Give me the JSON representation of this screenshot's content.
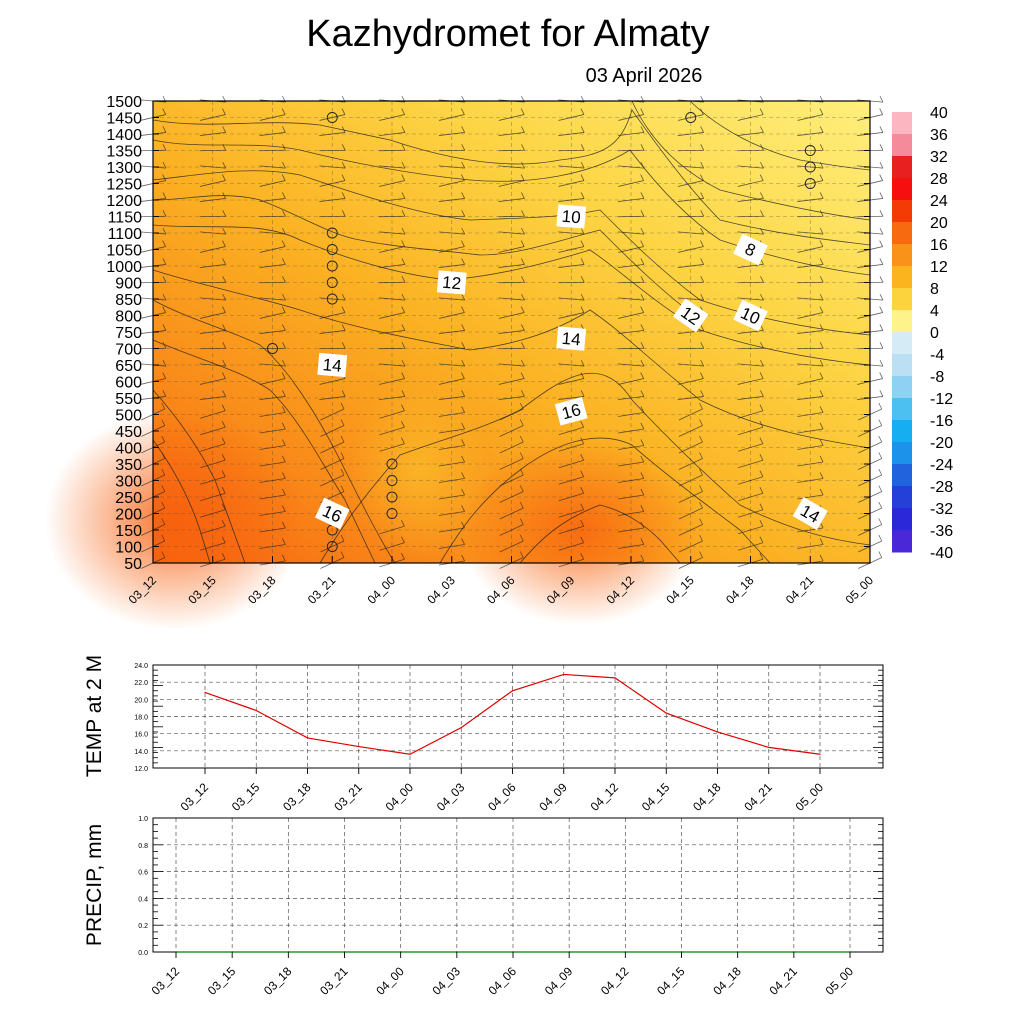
{
  "title": "Kazhydromet  for Almaty",
  "date": "03 April 2026",
  "time_labels": [
    "03_12",
    "03_15",
    "03_18",
    "03_21",
    "04_00",
    "04_03",
    "04_06",
    "04_09",
    "04_12",
    "04_15",
    "04_18",
    "04_21",
    "05_00"
  ],
  "chart_data": [
    {
      "type": "heatmap",
      "title": "Kazhydromet  for Almaty",
      "subtitle": "03 April 2026",
      "x": [
        "03_12",
        "03_15",
        "03_18",
        "03_21",
        "04_00",
        "04_03",
        "04_06",
        "04_09",
        "04_12",
        "04_15",
        "04_18",
        "04_21",
        "05_00"
      ],
      "y_ticks": [
        50,
        100,
        150,
        200,
        250,
        300,
        350,
        400,
        450,
        500,
        550,
        600,
        650,
        700,
        750,
        800,
        850,
        900,
        1000,
        1050,
        1100,
        1150,
        1200,
        1250,
        1300,
        1350,
        1400,
        1450,
        1500
      ],
      "ylim": [
        50,
        1500
      ],
      "grid": true,
      "colorbar_ticks": [
        40,
        36,
        32,
        28,
        24,
        20,
        16,
        12,
        8,
        4,
        0,
        -4,
        -8,
        -12,
        -16,
        -20,
        -24,
        -28,
        -32,
        -36,
        -40
      ],
      "colorbar_range": [
        -40,
        40
      ],
      "contour_labels": [
        {
          "text": "10",
          "x": "04_09",
          "y": 1150
        },
        {
          "text": "8",
          "x": "04_18",
          "y": 1050
        },
        {
          "text": "12",
          "x": "04_03",
          "y": 900
        },
        {
          "text": "12",
          "x": "04_15",
          "y": 800
        },
        {
          "text": "10",
          "x": "04_18",
          "y": 800
        },
        {
          "text": "14",
          "x": "04_09",
          "y": 730
        },
        {
          "text": "14",
          "x": "03_21",
          "y": 650
        },
        {
          "text": "16",
          "x": "04_09",
          "y": 510
        },
        {
          "text": "16",
          "x": "03_21",
          "y": 200
        },
        {
          "text": "14",
          "x": "04_21",
          "y": 200
        }
      ],
      "colors": {
        "hot": "#f96a12",
        "warm": "#fbae1e",
        "mild": "#fde35a",
        "pale": "#fef07e"
      }
    },
    {
      "type": "line",
      "ylabel": "TEMP at 2 M",
      "x": [
        "03_12",
        "03_15",
        "03_18",
        "03_21",
        "04_00",
        "04_03",
        "04_06",
        "04_09",
        "04_12",
        "04_15",
        "04_18",
        "04_21",
        "05_00"
      ],
      "values": [
        20.8,
        18.7,
        15.5,
        14.5,
        13.6,
        16.7,
        21.0,
        22.9,
        22.5,
        18.4,
        16.2,
        14.4,
        13.6
      ],
      "y_ticks": [
        "12.0",
        "14.0",
        "16.0",
        "18.0",
        "20.0",
        "22.0",
        "24.0"
      ],
      "ylim": [
        12,
        24
      ],
      "grid": true,
      "line_color": "#e00000"
    },
    {
      "type": "line",
      "ylabel": "PRECIP, mm",
      "x": [
        "03_12",
        "03_15",
        "03_18",
        "03_21",
        "04_00",
        "04_03",
        "04_06",
        "04_09",
        "04_12",
        "04_15",
        "04_18",
        "04_21",
        "05_00"
      ],
      "values": [
        0,
        0,
        0,
        0,
        0,
        0,
        0,
        0,
        0,
        0,
        0,
        0,
        0
      ],
      "y_ticks": [
        "0.0",
        "0.2",
        "0.4",
        "0.6",
        "0.8",
        "1.0"
      ],
      "ylim": [
        0,
        1
      ],
      "grid": true,
      "line_color": "#008000"
    }
  ]
}
